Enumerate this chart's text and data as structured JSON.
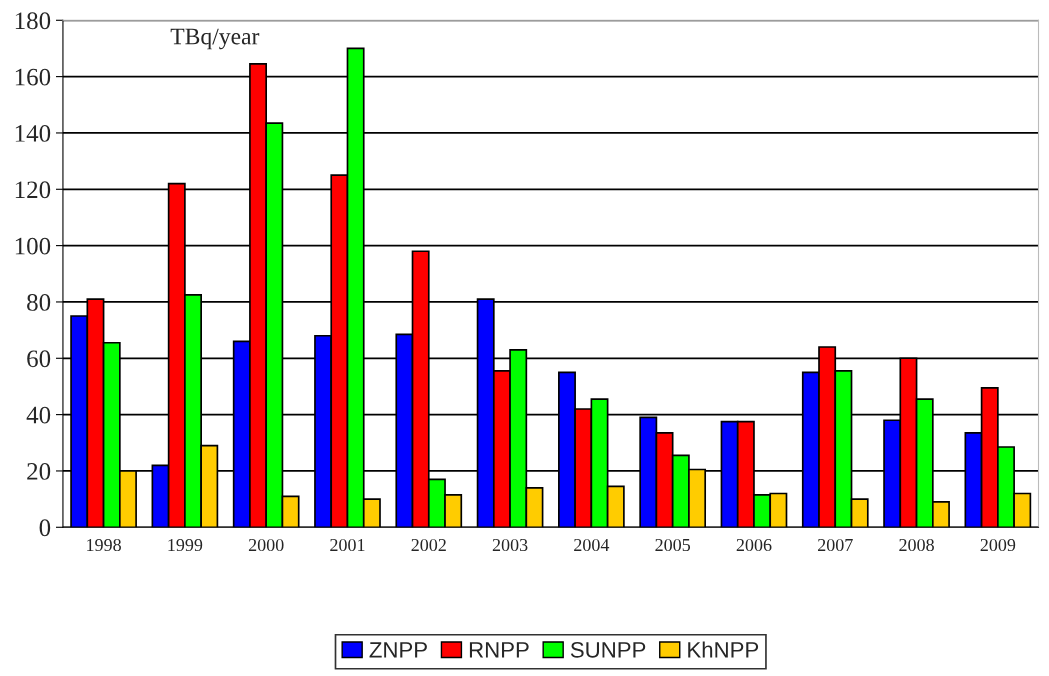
{
  "chart_data": {
    "type": "bar",
    "ylabel": "TBq/year",
    "categories": [
      "1998",
      "1999",
      "2000",
      "2001",
      "2002",
      "2003",
      "2004",
      "2005",
      "2006",
      "2007",
      "2008",
      "2009"
    ],
    "series": [
      {
        "name": "ZNPP",
        "color": "#0000ff",
        "values": [
          75,
          22,
          66,
          68,
          68.5,
          81,
          55,
          39,
          37.5,
          55,
          38,
          33.5
        ]
      },
      {
        "name": "RNPP",
        "color": "#ff0000",
        "values": [
          81,
          122,
          164.5,
          125,
          98,
          55.5,
          42,
          33.5,
          37.5,
          64,
          60,
          49.5
        ]
      },
      {
        "name": "SUNPP",
        "color": "#00ff00",
        "values": [
          65.5,
          82.5,
          143.5,
          170,
          17,
          63,
          45.5,
          25.5,
          11.5,
          55.5,
          45.5,
          28.5
        ]
      },
      {
        "name": "KhNPP",
        "color": "#ffcc00",
        "values": [
          20,
          29,
          11,
          10,
          11.5,
          14,
          14.5,
          20.5,
          12,
          10,
          9,
          12
        ]
      }
    ],
    "ylim": [
      0,
      180
    ],
    "yticks": [
      0,
      20,
      40,
      60,
      80,
      100,
      120,
      140,
      160,
      180
    ],
    "grid": "y",
    "legend": "bottom"
  }
}
